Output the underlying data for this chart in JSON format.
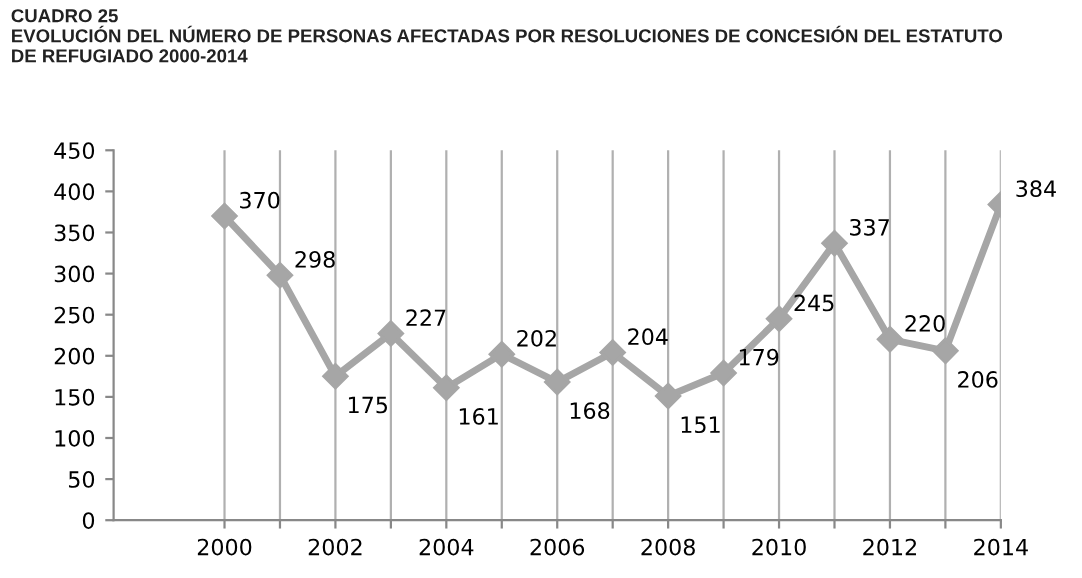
{
  "chart_data": {
    "type": "line",
    "title": "CUADRO 25\nEVOLUCIÓN DEL NÚMERO DE PERSONAS AFECTADAS POR RESOLUCIONES DE CONCESIÓN DEL ESTATUTO\nDE REFUGIADO 2000-2014",
    "x": [
      2000,
      2001,
      2002,
      2003,
      2004,
      2005,
      2006,
      2007,
      2008,
      2009,
      2010,
      2011,
      2012,
      2013,
      2014
    ],
    "series": [
      {
        "color": "#a6a6a6",
        "values": [
          370,
          298,
          175,
          227,
          161,
          202,
          168,
          204,
          151,
          179,
          245,
          337,
          220,
          206,
          384
        ]
      }
    ],
    "xlim": [
      1998,
      2014
    ],
    "xticks": [
      2000,
      {
        "value": 2001,
        "label": null
      },
      2002,
      {
        "value": 2003,
        "label": null
      },
      2004,
      {
        "value": 2005,
        "label": null
      },
      2006,
      {
        "value": 2007,
        "label": null
      },
      2008,
      {
        "value": 2009,
        "label": null
      },
      2010,
      {
        "value": 2011,
        "label": null
      },
      2012,
      {
        "value": 2013,
        "label": null
      },
      2014
    ],
    "ylim": [
      0,
      450
    ],
    "yticks": [
      0,
      50,
      100,
      150,
      200,
      250,
      300,
      350,
      400,
      450
    ],
    "grid": "x",
    "marker": "diamond",
    "line_style": "solid",
    "data_labels": true
  }
}
